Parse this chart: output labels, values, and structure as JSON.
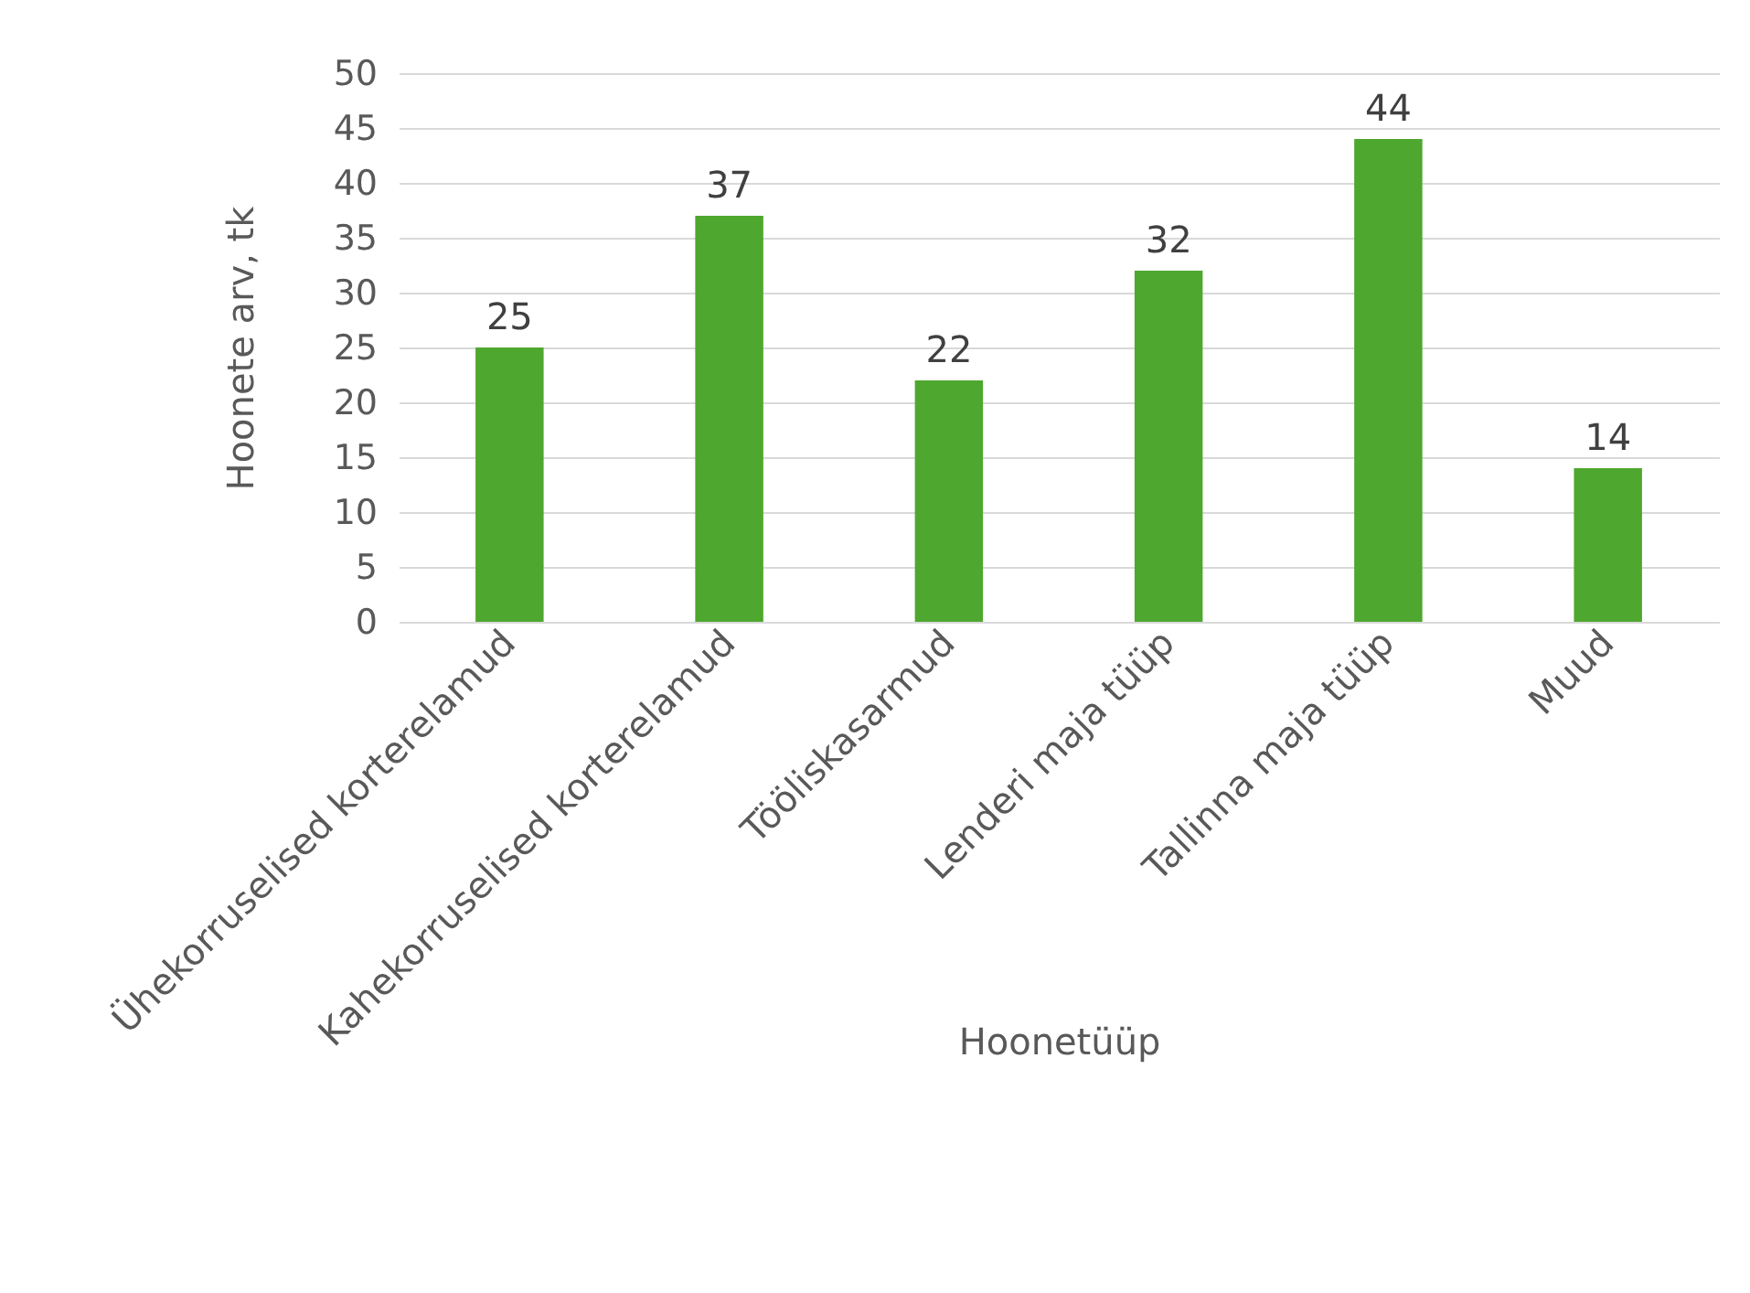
{
  "chart_data": {
    "type": "bar",
    "xlabel": "Hoonetüüp",
    "ylabel": "Hoonete arv, tk",
    "categories": [
      "Ühekorruselised korterelamud",
      "Kahekorruselised korterelamud",
      "Tööliskasarmud",
      "Lenderi maja tüüp",
      "Tallinna maja tüüp",
      "Muud"
    ],
    "values": [
      25,
      37,
      22,
      32,
      44,
      14
    ],
    "color": "#4ea72e",
    "ylim": [
      0,
      50
    ],
    "yticks": [
      0,
      5,
      10,
      15,
      20,
      25,
      30,
      35,
      40,
      45,
      50
    ],
    "grid": "y",
    "data_labels": true
  }
}
